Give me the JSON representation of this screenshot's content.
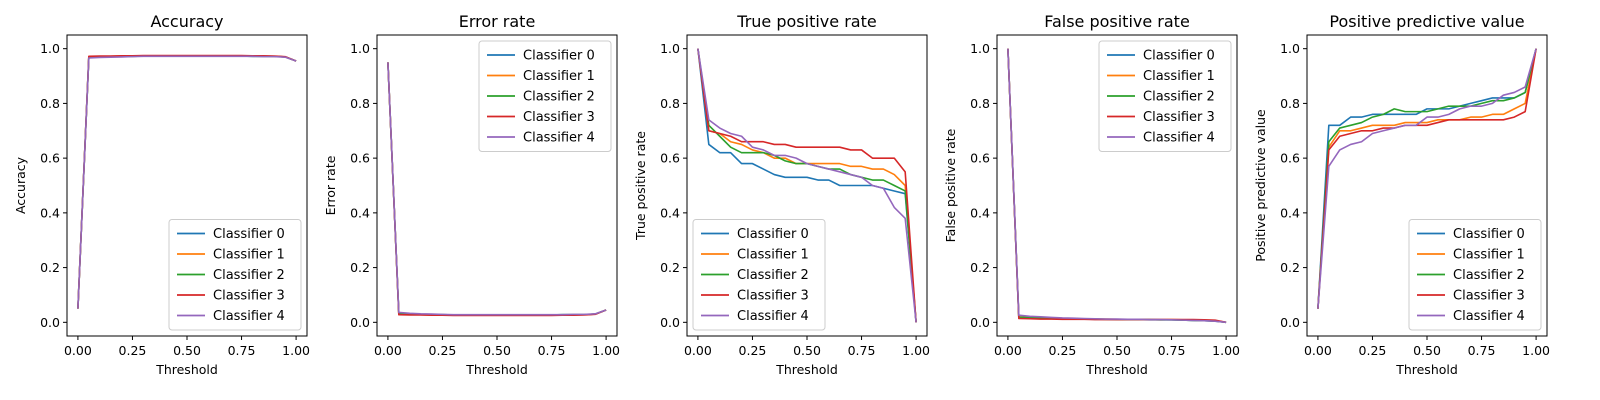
{
  "x_label": "Threshold",
  "colors": [
    "#1f77b4",
    "#ff7f0e",
    "#2ca02c",
    "#d62728",
    "#9467bd"
  ],
  "chart_data": [
    {
      "type": "line",
      "title": "Accuracy",
      "xlabel": "Threshold",
      "ylabel": "Accuracy",
      "xlim": [
        0,
        1
      ],
      "ylim": [
        0,
        1
      ],
      "xticks": [
        "0.00",
        "0.25",
        "0.50",
        "0.75",
        "1.00"
      ],
      "yticks": [
        "0.0",
        "0.2",
        "0.4",
        "0.6",
        "0.8",
        "1.0"
      ],
      "legend_position": "lower-right",
      "x": [
        0,
        0.05,
        0.1,
        0.15,
        0.2,
        0.25,
        0.3,
        0.35,
        0.4,
        0.45,
        0.5,
        0.55,
        0.6,
        0.65,
        0.7,
        0.75,
        0.8,
        0.85,
        0.9,
        0.95,
        1.0
      ],
      "series": [
        {
          "name": "Classifier 0",
          "values": [
            0.05,
            0.968,
            0.97,
            0.971,
            0.972,
            0.972,
            0.973,
            0.973,
            0.973,
            0.973,
            0.973,
            0.973,
            0.973,
            0.973,
            0.973,
            0.973,
            0.972,
            0.972,
            0.972,
            0.97,
            0.955
          ]
        },
        {
          "name": "Classifier 1",
          "values": [
            0.05,
            0.97,
            0.971,
            0.972,
            0.973,
            0.973,
            0.974,
            0.974,
            0.974,
            0.974,
            0.974,
            0.974,
            0.974,
            0.974,
            0.974,
            0.974,
            0.973,
            0.973,
            0.972,
            0.97,
            0.955
          ]
        },
        {
          "name": "Classifier 2",
          "values": [
            0.05,
            0.969,
            0.97,
            0.971,
            0.972,
            0.972,
            0.973,
            0.973,
            0.973,
            0.973,
            0.973,
            0.973,
            0.973,
            0.973,
            0.973,
            0.973,
            0.972,
            0.972,
            0.972,
            0.97,
            0.955
          ]
        },
        {
          "name": "Classifier 3",
          "values": [
            0.05,
            0.972,
            0.973,
            0.973,
            0.974,
            0.974,
            0.975,
            0.975,
            0.975,
            0.975,
            0.975,
            0.975,
            0.975,
            0.975,
            0.975,
            0.975,
            0.974,
            0.974,
            0.973,
            0.971,
            0.955
          ]
        },
        {
          "name": "Classifier 4",
          "values": [
            0.05,
            0.966,
            0.968,
            0.969,
            0.97,
            0.971,
            0.972,
            0.972,
            0.972,
            0.972,
            0.972,
            0.972,
            0.972,
            0.972,
            0.972,
            0.972,
            0.972,
            0.971,
            0.971,
            0.969,
            0.955
          ]
        }
      ]
    },
    {
      "type": "line",
      "title": "Error rate",
      "xlabel": "Threshold",
      "ylabel": "Error rate",
      "xlim": [
        0,
        1
      ],
      "ylim": [
        0,
        1
      ],
      "xticks": [
        "0.00",
        "0.25",
        "0.50",
        "0.75",
        "1.00"
      ],
      "yticks": [
        "0.0",
        "0.2",
        "0.4",
        "0.6",
        "0.8",
        "1.0"
      ],
      "legend_position": "upper-right",
      "x": [
        0,
        0.05,
        0.1,
        0.15,
        0.2,
        0.25,
        0.3,
        0.35,
        0.4,
        0.45,
        0.5,
        0.55,
        0.6,
        0.65,
        0.7,
        0.75,
        0.8,
        0.85,
        0.9,
        0.95,
        1.0
      ],
      "series": [
        {
          "name": "Classifier 0",
          "values": [
            0.95,
            0.032,
            0.03,
            0.029,
            0.028,
            0.028,
            0.027,
            0.027,
            0.027,
            0.027,
            0.027,
            0.027,
            0.027,
            0.027,
            0.027,
            0.027,
            0.028,
            0.028,
            0.028,
            0.03,
            0.045
          ]
        },
        {
          "name": "Classifier 1",
          "values": [
            0.95,
            0.03,
            0.029,
            0.028,
            0.027,
            0.027,
            0.026,
            0.026,
            0.026,
            0.026,
            0.026,
            0.026,
            0.026,
            0.026,
            0.026,
            0.026,
            0.027,
            0.027,
            0.028,
            0.03,
            0.045
          ]
        },
        {
          "name": "Classifier 2",
          "values": [
            0.95,
            0.031,
            0.03,
            0.029,
            0.028,
            0.028,
            0.027,
            0.027,
            0.027,
            0.027,
            0.027,
            0.027,
            0.027,
            0.027,
            0.027,
            0.027,
            0.028,
            0.028,
            0.028,
            0.03,
            0.045
          ]
        },
        {
          "name": "Classifier 3",
          "values": [
            0.95,
            0.028,
            0.027,
            0.027,
            0.026,
            0.026,
            0.025,
            0.025,
            0.025,
            0.025,
            0.025,
            0.025,
            0.025,
            0.025,
            0.025,
            0.025,
            0.026,
            0.026,
            0.027,
            0.029,
            0.045
          ]
        },
        {
          "name": "Classifier 4",
          "values": [
            0.95,
            0.036,
            0.033,
            0.031,
            0.03,
            0.029,
            0.028,
            0.028,
            0.028,
            0.028,
            0.028,
            0.028,
            0.028,
            0.028,
            0.028,
            0.028,
            0.028,
            0.029,
            0.029,
            0.031,
            0.045
          ]
        }
      ]
    },
    {
      "type": "line",
      "title": "True positive rate",
      "xlabel": "Threshold",
      "ylabel": "True positive rate",
      "xlim": [
        0,
        1
      ],
      "ylim": [
        0,
        1
      ],
      "xticks": [
        "0.00",
        "0.25",
        "0.50",
        "0.75",
        "1.00"
      ],
      "yticks": [
        "0.0",
        "0.2",
        "0.4",
        "0.6",
        "0.8",
        "1.0"
      ],
      "legend_position": "lower-left",
      "x": [
        0,
        0.05,
        0.1,
        0.15,
        0.2,
        0.25,
        0.3,
        0.35,
        0.4,
        0.45,
        0.5,
        0.55,
        0.6,
        0.65,
        0.7,
        0.75,
        0.8,
        0.85,
        0.9,
        0.95,
        1.0
      ],
      "series": [
        {
          "name": "Classifier 0",
          "values": [
            1.0,
            0.65,
            0.62,
            0.62,
            0.58,
            0.58,
            0.56,
            0.54,
            0.53,
            0.53,
            0.53,
            0.52,
            0.52,
            0.5,
            0.5,
            0.5,
            0.5,
            0.49,
            0.48,
            0.47,
            0.0
          ]
        },
        {
          "name": "Classifier 1",
          "values": [
            1.0,
            0.7,
            0.69,
            0.66,
            0.65,
            0.63,
            0.62,
            0.6,
            0.6,
            0.58,
            0.58,
            0.58,
            0.58,
            0.58,
            0.57,
            0.57,
            0.56,
            0.56,
            0.54,
            0.5,
            0.0
          ]
        },
        {
          "name": "Classifier 2",
          "values": [
            1.0,
            0.72,
            0.68,
            0.64,
            0.62,
            0.62,
            0.62,
            0.61,
            0.59,
            0.58,
            0.58,
            0.57,
            0.56,
            0.56,
            0.54,
            0.53,
            0.52,
            0.52,
            0.5,
            0.48,
            0.0
          ]
        },
        {
          "name": "Classifier 3",
          "values": [
            1.0,
            0.7,
            0.69,
            0.68,
            0.66,
            0.66,
            0.66,
            0.65,
            0.65,
            0.64,
            0.64,
            0.64,
            0.64,
            0.64,
            0.63,
            0.63,
            0.6,
            0.6,
            0.6,
            0.55,
            0.0
          ]
        },
        {
          "name": "Classifier 4",
          "values": [
            1.0,
            0.74,
            0.71,
            0.69,
            0.68,
            0.64,
            0.63,
            0.61,
            0.61,
            0.6,
            0.58,
            0.57,
            0.56,
            0.55,
            0.54,
            0.53,
            0.5,
            0.49,
            0.42,
            0.38,
            0.0
          ]
        }
      ]
    },
    {
      "type": "line",
      "title": "False positive rate",
      "xlabel": "Threshold",
      "ylabel": "False positive rate",
      "xlim": [
        0,
        1
      ],
      "ylim": [
        0,
        1
      ],
      "xticks": [
        "0.00",
        "0.25",
        "0.50",
        "0.75",
        "1.00"
      ],
      "yticks": [
        "0.0",
        "0.2",
        "0.4",
        "0.6",
        "0.8",
        "1.0"
      ],
      "legend_position": "upper-right",
      "x": [
        0,
        0.05,
        0.1,
        0.15,
        0.2,
        0.25,
        0.3,
        0.35,
        0.4,
        0.45,
        0.5,
        0.55,
        0.6,
        0.65,
        0.7,
        0.75,
        0.8,
        0.85,
        0.9,
        0.95,
        1.0
      ],
      "series": [
        {
          "name": "Classifier 0",
          "values": [
            1.0,
            0.018,
            0.016,
            0.015,
            0.014,
            0.013,
            0.012,
            0.012,
            0.011,
            0.011,
            0.01,
            0.01,
            0.01,
            0.009,
            0.009,
            0.009,
            0.008,
            0.007,
            0.006,
            0.004,
            0.0
          ]
        },
        {
          "name": "Classifier 1",
          "values": [
            1.0,
            0.02,
            0.018,
            0.016,
            0.015,
            0.014,
            0.013,
            0.013,
            0.012,
            0.012,
            0.011,
            0.011,
            0.011,
            0.01,
            0.01,
            0.01,
            0.009,
            0.008,
            0.007,
            0.005,
            0.0
          ]
        },
        {
          "name": "Classifier 2",
          "values": [
            1.0,
            0.019,
            0.017,
            0.015,
            0.014,
            0.013,
            0.013,
            0.012,
            0.012,
            0.011,
            0.011,
            0.01,
            0.01,
            0.01,
            0.009,
            0.009,
            0.008,
            0.007,
            0.006,
            0.005,
            0.0
          ]
        },
        {
          "name": "Classifier 3",
          "values": [
            1.0,
            0.014,
            0.013,
            0.012,
            0.012,
            0.011,
            0.011,
            0.011,
            0.01,
            0.01,
            0.01,
            0.01,
            0.01,
            0.01,
            0.01,
            0.01,
            0.01,
            0.01,
            0.009,
            0.008,
            0.0
          ]
        },
        {
          "name": "Classifier 4",
          "values": [
            1.0,
            0.026,
            0.022,
            0.02,
            0.018,
            0.016,
            0.015,
            0.014,
            0.013,
            0.012,
            0.012,
            0.011,
            0.011,
            0.01,
            0.01,
            0.009,
            0.008,
            0.007,
            0.006,
            0.004,
            0.0
          ]
        }
      ]
    },
    {
      "type": "line",
      "title": "Positive predictive value",
      "xlabel": "Threshold",
      "ylabel": "Positive predictive value",
      "xlim": [
        0,
        1
      ],
      "ylim": [
        0,
        1
      ],
      "xticks": [
        "0.00",
        "0.25",
        "0.50",
        "0.75",
        "1.00"
      ],
      "yticks": [
        "0.0",
        "0.2",
        "0.4",
        "0.6",
        "0.8",
        "1.0"
      ],
      "legend_position": "lower-right",
      "x": [
        0,
        0.05,
        0.1,
        0.15,
        0.2,
        0.25,
        0.3,
        0.35,
        0.4,
        0.45,
        0.5,
        0.55,
        0.6,
        0.65,
        0.7,
        0.75,
        0.8,
        0.85,
        0.9,
        0.95,
        1.0
      ],
      "series": [
        {
          "name": "Classifier 0",
          "values": [
            0.05,
            0.72,
            0.72,
            0.75,
            0.75,
            0.76,
            0.76,
            0.76,
            0.76,
            0.76,
            0.78,
            0.78,
            0.78,
            0.79,
            0.8,
            0.81,
            0.82,
            0.82,
            0.82,
            0.84,
            1.0
          ]
        },
        {
          "name": "Classifier 1",
          "values": [
            0.05,
            0.64,
            0.7,
            0.7,
            0.71,
            0.72,
            0.72,
            0.72,
            0.73,
            0.73,
            0.73,
            0.74,
            0.74,
            0.74,
            0.75,
            0.75,
            0.76,
            0.76,
            0.78,
            0.8,
            1.0
          ]
        },
        {
          "name": "Classifier 2",
          "values": [
            0.05,
            0.66,
            0.71,
            0.72,
            0.73,
            0.75,
            0.76,
            0.78,
            0.77,
            0.77,
            0.77,
            0.78,
            0.79,
            0.79,
            0.79,
            0.8,
            0.81,
            0.81,
            0.82,
            0.84,
            1.0
          ]
        },
        {
          "name": "Classifier 3",
          "values": [
            0.05,
            0.63,
            0.68,
            0.69,
            0.7,
            0.7,
            0.71,
            0.71,
            0.72,
            0.72,
            0.72,
            0.73,
            0.74,
            0.74,
            0.74,
            0.74,
            0.74,
            0.74,
            0.75,
            0.77,
            1.0
          ]
        },
        {
          "name": "Classifier 4",
          "values": [
            0.05,
            0.57,
            0.63,
            0.65,
            0.66,
            0.69,
            0.7,
            0.71,
            0.72,
            0.72,
            0.75,
            0.75,
            0.76,
            0.78,
            0.79,
            0.79,
            0.8,
            0.83,
            0.84,
            0.86,
            1.0
          ]
        }
      ]
    }
  ]
}
